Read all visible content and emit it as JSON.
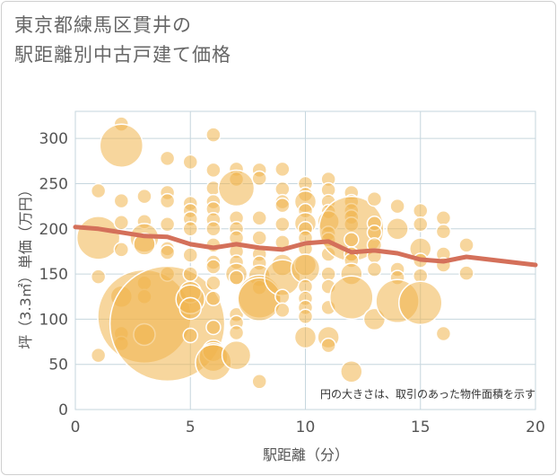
{
  "chart_data": {
    "type": "scatter",
    "title_lines": [
      "東京都練馬区貫井の",
      "駅距離別中古戸建て価格"
    ],
    "xlabel": "駅距離（分）",
    "ylabel": "坪（3.3㎡）単価（万円）",
    "xlim": [
      0,
      20
    ],
    "ylim": [
      0,
      330
    ],
    "x_ticks": [
      0,
      5,
      10,
      15,
      20
    ],
    "y_ticks": [
      0,
      50,
      100,
      150,
      200,
      250,
      300
    ],
    "note": "円の大きさは、取引のあった物件面積を示す",
    "colors": {
      "bubble": "#f0b44c",
      "bubble_stroke": "#ffffff",
      "trend": "#d4705a",
      "grid": "#c6d6de"
    },
    "bubbles": [
      {
        "x": 1,
        "y": 242,
        "r": 1
      },
      {
        "x": 1,
        "y": 190,
        "r": 3
      },
      {
        "x": 1,
        "y": 147,
        "r": 1
      },
      {
        "x": 1,
        "y": 60,
        "r": 1
      },
      {
        "x": 2,
        "y": 316,
        "r": 1
      },
      {
        "x": 2,
        "y": 292,
        "r": 3
      },
      {
        "x": 2,
        "y": 231,
        "r": 1
      },
      {
        "x": 2,
        "y": 207,
        "r": 1
      },
      {
        "x": 2,
        "y": 177,
        "r": 1
      },
      {
        "x": 2,
        "y": 125,
        "r": 1.5
      },
      {
        "x": 2,
        "y": 84,
        "r": 1
      },
      {
        "x": 2,
        "y": 73,
        "r": 1
      },
      {
        "x": 3,
        "y": 236,
        "r": 1
      },
      {
        "x": 3,
        "y": 208,
        "r": 1
      },
      {
        "x": 3,
        "y": 190,
        "r": 2
      },
      {
        "x": 3,
        "y": 183,
        "r": 1.5
      },
      {
        "x": 3,
        "y": 140,
        "r": 1
      },
      {
        "x": 3,
        "y": 125,
        "r": 1
      },
      {
        "x": 3,
        "y": 103,
        "r": 6.5
      },
      {
        "x": 3,
        "y": 83,
        "r": 1.5
      },
      {
        "x": 4,
        "y": 278,
        "r": 1
      },
      {
        "x": 4,
        "y": 240,
        "r": 1
      },
      {
        "x": 4,
        "y": 231,
        "r": 1
      },
      {
        "x": 4,
        "y": 205,
        "r": 1
      },
      {
        "x": 4,
        "y": 178,
        "r": 1
      },
      {
        "x": 4,
        "y": 174,
        "r": 1
      },
      {
        "x": 4,
        "y": 150,
        "r": 1
      },
      {
        "x": 4,
        "y": 95,
        "r": 8
      },
      {
        "x": 5,
        "y": 274,
        "r": 1
      },
      {
        "x": 5,
        "y": 228,
        "r": 1
      },
      {
        "x": 5,
        "y": 220,
        "r": 1
      },
      {
        "x": 5,
        "y": 211,
        "r": 1
      },
      {
        "x": 5,
        "y": 200,
        "r": 1
      },
      {
        "x": 5,
        "y": 171,
        "r": 1
      },
      {
        "x": 5,
        "y": 150,
        "r": 1
      },
      {
        "x": 5,
        "y": 130,
        "r": 1.5
      },
      {
        "x": 5,
        "y": 122,
        "r": 2
      },
      {
        "x": 5,
        "y": 112,
        "r": 1.5
      },
      {
        "x": 5,
        "y": 82,
        "r": 1
      },
      {
        "x": 6,
        "y": 304,
        "r": 1
      },
      {
        "x": 6,
        "y": 265,
        "r": 1
      },
      {
        "x": 6,
        "y": 245,
        "r": 1
      },
      {
        "x": 6,
        "y": 230,
        "r": 1
      },
      {
        "x": 6,
        "y": 222,
        "r": 1
      },
      {
        "x": 6,
        "y": 210,
        "r": 1
      },
      {
        "x": 6,
        "y": 200,
        "r": 1
      },
      {
        "x": 6,
        "y": 182,
        "r": 1
      },
      {
        "x": 6,
        "y": 163,
        "r": 1
      },
      {
        "x": 6,
        "y": 158,
        "r": 1
      },
      {
        "x": 6,
        "y": 140,
        "r": 1
      },
      {
        "x": 6,
        "y": 123,
        "r": 1
      },
      {
        "x": 6,
        "y": 91,
        "r": 1
      },
      {
        "x": 6,
        "y": 65,
        "r": 1.5
      },
      {
        "x": 6,
        "y": 58,
        "r": 2
      },
      {
        "x": 6,
        "y": 52,
        "r": 2.5
      },
      {
        "x": 7,
        "y": 266,
        "r": 1
      },
      {
        "x": 7,
        "y": 255,
        "r": 1
      },
      {
        "x": 7,
        "y": 245,
        "r": 2.5
      },
      {
        "x": 7,
        "y": 212,
        "r": 1
      },
      {
        "x": 7,
        "y": 200,
        "r": 1
      },
      {
        "x": 7,
        "y": 190,
        "r": 1
      },
      {
        "x": 7,
        "y": 175,
        "r": 1
      },
      {
        "x": 7,
        "y": 163,
        "r": 1
      },
      {
        "x": 7,
        "y": 150,
        "r": 1.5
      },
      {
        "x": 7,
        "y": 146,
        "r": 1
      },
      {
        "x": 7,
        "y": 105,
        "r": 1
      },
      {
        "x": 7,
        "y": 96,
        "r": 1
      },
      {
        "x": 7,
        "y": 85,
        "r": 1
      },
      {
        "x": 7,
        "y": 60,
        "r": 2
      },
      {
        "x": 8,
        "y": 265,
        "r": 1
      },
      {
        "x": 8,
        "y": 256,
        "r": 1
      },
      {
        "x": 8,
        "y": 212,
        "r": 1
      },
      {
        "x": 8,
        "y": 190,
        "r": 1
      },
      {
        "x": 8,
        "y": 172,
        "r": 1
      },
      {
        "x": 8,
        "y": 162,
        "r": 1
      },
      {
        "x": 8,
        "y": 148,
        "r": 1.5
      },
      {
        "x": 8,
        "y": 135,
        "r": 1
      },
      {
        "x": 8,
        "y": 125,
        "r": 3
      },
      {
        "x": 8,
        "y": 122,
        "r": 3
      },
      {
        "x": 8,
        "y": 31,
        "r": 1
      },
      {
        "x": 9,
        "y": 266,
        "r": 1
      },
      {
        "x": 9,
        "y": 244,
        "r": 1
      },
      {
        "x": 9,
        "y": 230,
        "r": 1
      },
      {
        "x": 9,
        "y": 226,
        "r": 1
      },
      {
        "x": 9,
        "y": 205,
        "r": 1
      },
      {
        "x": 9,
        "y": 185,
        "r": 1
      },
      {
        "x": 9,
        "y": 160,
        "r": 1.5
      },
      {
        "x": 9,
        "y": 146,
        "r": 2.5
      },
      {
        "x": 9,
        "y": 125,
        "r": 1
      },
      {
        "x": 9,
        "y": 110,
        "r": 1
      },
      {
        "x": 10,
        "y": 250,
        "r": 1
      },
      {
        "x": 10,
        "y": 238,
        "r": 1
      },
      {
        "x": 10,
        "y": 230,
        "r": 1.5
      },
      {
        "x": 10,
        "y": 220,
        "r": 1
      },
      {
        "x": 10,
        "y": 206,
        "r": 1.5
      },
      {
        "x": 10,
        "y": 200,
        "r": 1
      },
      {
        "x": 10,
        "y": 190,
        "r": 1
      },
      {
        "x": 10,
        "y": 178,
        "r": 1
      },
      {
        "x": 10,
        "y": 160,
        "r": 1.5
      },
      {
        "x": 10,
        "y": 156,
        "r": 2
      },
      {
        "x": 10,
        "y": 136,
        "r": 1
      },
      {
        "x": 10,
        "y": 123,
        "r": 1
      },
      {
        "x": 10,
        "y": 113,
        "r": 1
      },
      {
        "x": 10,
        "y": 103,
        "r": 1
      },
      {
        "x": 10,
        "y": 80,
        "r": 1.5
      },
      {
        "x": 11,
        "y": 255,
        "r": 1
      },
      {
        "x": 11,
        "y": 243,
        "r": 1
      },
      {
        "x": 11,
        "y": 230,
        "r": 1
      },
      {
        "x": 11,
        "y": 219,
        "r": 1
      },
      {
        "x": 11,
        "y": 208,
        "r": 1.5
      },
      {
        "x": 11,
        "y": 195,
        "r": 1
      },
      {
        "x": 11,
        "y": 188,
        "r": 1
      },
      {
        "x": 11,
        "y": 172,
        "r": 1
      },
      {
        "x": 11,
        "y": 150,
        "r": 1
      },
      {
        "x": 11,
        "y": 136,
        "r": 1
      },
      {
        "x": 11,
        "y": 113,
        "r": 1
      },
      {
        "x": 11,
        "y": 80,
        "r": 1.5
      },
      {
        "x": 11,
        "y": 71,
        "r": 1
      },
      {
        "x": 12,
        "y": 240,
        "r": 1
      },
      {
        "x": 12,
        "y": 230,
        "r": 1
      },
      {
        "x": 12,
        "y": 220,
        "r": 1
      },
      {
        "x": 12,
        "y": 213,
        "r": 1
      },
      {
        "x": 12,
        "y": 205,
        "r": 1
      },
      {
        "x": 12,
        "y": 200,
        "r": 4.5
      },
      {
        "x": 12,
        "y": 188,
        "r": 1
      },
      {
        "x": 12,
        "y": 172,
        "r": 1
      },
      {
        "x": 12,
        "y": 165,
        "r": 1
      },
      {
        "x": 12,
        "y": 150,
        "r": 1.5
      },
      {
        "x": 12,
        "y": 124,
        "r": 3
      },
      {
        "x": 12,
        "y": 42,
        "r": 1.5
      },
      {
        "x": 13,
        "y": 233,
        "r": 1
      },
      {
        "x": 13,
        "y": 206,
        "r": 1
      },
      {
        "x": 13,
        "y": 196,
        "r": 1
      },
      {
        "x": 13,
        "y": 182,
        "r": 1
      },
      {
        "x": 13,
        "y": 170,
        "r": 1
      },
      {
        "x": 13,
        "y": 155,
        "r": 1
      },
      {
        "x": 13,
        "y": 100,
        "r": 1.5
      },
      {
        "x": 14,
        "y": 225,
        "r": 1
      },
      {
        "x": 14,
        "y": 200,
        "r": 1.5
      },
      {
        "x": 14,
        "y": 155,
        "r": 1
      },
      {
        "x": 14,
        "y": 146,
        "r": 1
      },
      {
        "x": 14,
        "y": 120,
        "r": 3
      },
      {
        "x": 15,
        "y": 220,
        "r": 1
      },
      {
        "x": 15,
        "y": 205,
        "r": 1
      },
      {
        "x": 15,
        "y": 178,
        "r": 1.5
      },
      {
        "x": 15,
        "y": 165,
        "r": 1
      },
      {
        "x": 15,
        "y": 148,
        "r": 1
      },
      {
        "x": 15,
        "y": 118,
        "r": 3
      },
      {
        "x": 16,
        "y": 212,
        "r": 1
      },
      {
        "x": 16,
        "y": 197,
        "r": 1
      },
      {
        "x": 16,
        "y": 172,
        "r": 1
      },
      {
        "x": 16,
        "y": 160,
        "r": 1
      },
      {
        "x": 16,
        "y": 84,
        "r": 1
      },
      {
        "x": 17,
        "y": 182,
        "r": 1
      },
      {
        "x": 17,
        "y": 151,
        "r": 1
      }
    ],
    "trend": {
      "x": [
        0,
        1,
        2,
        3,
        4,
        5,
        6,
        7,
        8,
        9,
        10,
        11,
        12,
        13,
        14,
        15,
        16,
        17,
        18,
        19,
        20
      ],
      "y": [
        202,
        200,
        196,
        192,
        191,
        183,
        179,
        183,
        179,
        177,
        184,
        186,
        174,
        176,
        173,
        166,
        164,
        169,
        166,
        163,
        160
      ]
    }
  }
}
